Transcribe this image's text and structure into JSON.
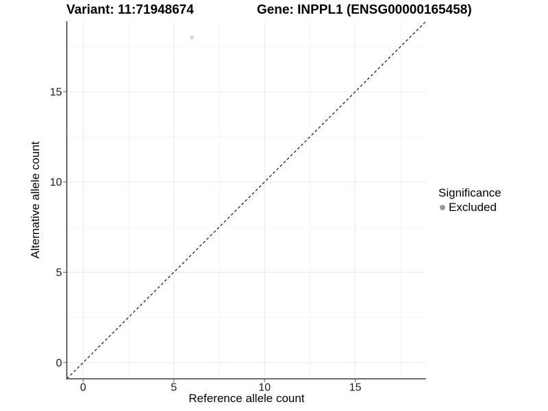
{
  "chart_data": {
    "type": "scatter",
    "title_left": "Variant: 11:71948674",
    "title_right": "Gene: INPPL1 (ENSG00000165458)",
    "xlabel": "Reference allele count",
    "ylabel": "Alternative allele count",
    "xlim": [
      -0.9,
      18.9
    ],
    "ylim": [
      -0.9,
      18.9
    ],
    "x_ticks": [
      0,
      5,
      10,
      15
    ],
    "y_ticks": [
      0,
      5,
      10,
      15
    ],
    "x_minor_ticks": [
      2.5,
      7.5,
      12.5,
      17.5
    ],
    "y_minor_ticks": [
      2.5,
      7.5,
      12.5,
      17.5
    ],
    "grid": "major+minor",
    "series": [
      {
        "name": "Excluded",
        "color": "#d0d0d0",
        "points": [
          {
            "x": 6,
            "y": 18
          }
        ]
      }
    ],
    "reference_line": {
      "type": "identity y=x",
      "style": "dashed",
      "color": "#111111"
    },
    "legend": {
      "title": "Significance",
      "position": "right",
      "items": [
        {
          "label": "Excluded",
          "key_color": "#9b9b9b"
        }
      ]
    }
  },
  "colors": {
    "background": "#ffffff",
    "axis_line": "#3f3f3f",
    "grid_major": "#e9e9e9",
    "grid_minor": "#f4f4f4",
    "tick_mark": "#6e6e6e",
    "tick_label": "#1a1a1a"
  }
}
